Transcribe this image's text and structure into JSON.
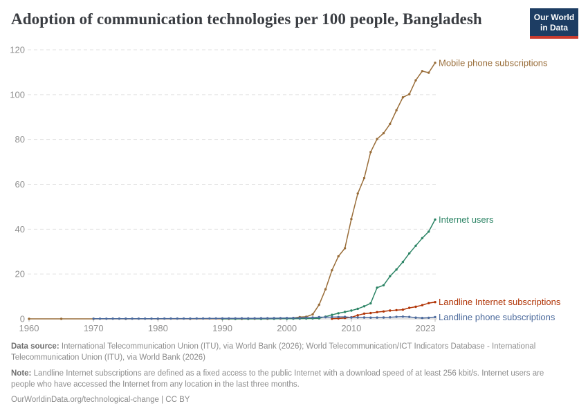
{
  "header": {
    "logo": {
      "line1": "Our World",
      "line2": "in Data",
      "bg_color": "#1d3d63",
      "bar_color": "#c93b2e"
    }
  },
  "footer": {
    "source_label": "Data source:",
    "source_text": "International Telecommunication Union (ITU), via World Bank (2026); World Telecommunication/ICT Indicators Database - International Telecommunication Union (ITU), via World Bank (2026)",
    "note_label": "Note:",
    "note_text": "Landline Internet subscriptions are defined as a fixed access to the public Internet with a download speed of at least 256 kbit/s. Internet users are people who have accessed the Internet from any location in the last three months.",
    "link_text": "OurWorldinData.org/technological-change | CC BY"
  },
  "chart_data": {
    "type": "line",
    "title": "Adoption of communication technologies per 100 people, Bangladesh",
    "xlabel": "",
    "ylabel": "",
    "xlim": [
      1960,
      2023
    ],
    "ylim": [
      0,
      120
    ],
    "x_ticks": [
      1960,
      1970,
      1980,
      1990,
      2000,
      2010,
      2023
    ],
    "y_ticks": [
      0,
      20,
      40,
      60,
      80,
      100,
      120
    ],
    "grid": "horizontal-dashed",
    "legend_position": "end-of-line-labels",
    "axis_text_color": "#8f8f8f",
    "gridline_color": "#e1e1e1",
    "zeroline_color": "#c6c6c6",
    "series": [
      {
        "name": "Mobile phone subscriptions",
        "color": "#996d39",
        "points": [
          [
            1960,
            0
          ],
          [
            1965,
            0
          ],
          [
            1970,
            0
          ],
          [
            1975,
            0
          ],
          [
            1980,
            0
          ],
          [
            1985,
            0
          ],
          [
            1990,
            0
          ],
          [
            1991,
            0
          ],
          [
            1992,
            0
          ],
          [
            1993,
            0.01
          ],
          [
            1994,
            0.01
          ],
          [
            1995,
            0.02
          ],
          [
            1996,
            0.02
          ],
          [
            1997,
            0.03
          ],
          [
            1998,
            0.07
          ],
          [
            1999,
            0.12
          ],
          [
            2000,
            0.21
          ],
          [
            2001,
            0.39
          ],
          [
            2002,
            0.79
          ],
          [
            2003,
            0.97
          ],
          [
            2004,
            1.96
          ],
          [
            2005,
            6.28
          ],
          [
            2006,
            13.2
          ],
          [
            2007,
            21.7
          ],
          [
            2008,
            27.9
          ],
          [
            2009,
            31.5
          ],
          [
            2010,
            44.5
          ],
          [
            2011,
            55.9
          ],
          [
            2012,
            62.8
          ],
          [
            2013,
            74.4
          ],
          [
            2014,
            80.2
          ],
          [
            2015,
            82.8
          ],
          [
            2016,
            86.9
          ],
          [
            2017,
            93.0
          ],
          [
            2018,
            98.8
          ],
          [
            2019,
            100.2
          ],
          [
            2020,
            106.4
          ],
          [
            2021,
            110.5
          ],
          [
            2022,
            109.8
          ],
          [
            2023,
            114.2
          ]
        ]
      },
      {
        "name": "Internet users",
        "color": "#2c8465",
        "points": [
          [
            1990,
            0
          ],
          [
            1992,
            0
          ],
          [
            1994,
            0
          ],
          [
            1996,
            0.01
          ],
          [
            1998,
            0.03
          ],
          [
            2000,
            0.07
          ],
          [
            2001,
            0.1
          ],
          [
            2002,
            0.13
          ],
          [
            2003,
            0.16
          ],
          [
            2004,
            0.2
          ],
          [
            2005,
            0.24
          ],
          [
            2006,
            1.0
          ],
          [
            2007,
            1.8
          ],
          [
            2008,
            2.5
          ],
          [
            2009,
            3.1
          ],
          [
            2010,
            3.7
          ],
          [
            2011,
            4.5
          ],
          [
            2012,
            5.6
          ],
          [
            2013,
            6.9
          ],
          [
            2014,
            13.9
          ],
          [
            2015,
            15.0
          ],
          [
            2016,
            19.0
          ],
          [
            2017,
            22.0
          ],
          [
            2018,
            25.4
          ],
          [
            2019,
            29.2
          ],
          [
            2020,
            32.6
          ],
          [
            2021,
            36.0
          ],
          [
            2022,
            38.9
          ],
          [
            2023,
            44.3
          ]
        ]
      },
      {
        "name": "Landline Internet subscriptions",
        "color": "#b13507",
        "points": [
          [
            2007,
            0.03
          ],
          [
            2008,
            0.2
          ],
          [
            2009,
            0.4
          ],
          [
            2010,
            0.7
          ],
          [
            2011,
            1.6
          ],
          [
            2012,
            2.3
          ],
          [
            2013,
            2.6
          ],
          [
            2014,
            3.0
          ],
          [
            2015,
            3.3
          ],
          [
            2016,
            3.7
          ],
          [
            2017,
            3.9
          ],
          [
            2018,
            4.1
          ],
          [
            2019,
            4.9
          ],
          [
            2020,
            5.4
          ],
          [
            2021,
            6.1
          ],
          [
            2022,
            7.0
          ],
          [
            2023,
            7.5
          ]
        ]
      },
      {
        "name": "Landline phone subscriptions",
        "color": "#4c6a9c",
        "points": [
          [
            1970,
            0.07
          ],
          [
            1971,
            0.07
          ],
          [
            1972,
            0.07
          ],
          [
            1973,
            0.08
          ],
          [
            1974,
            0.08
          ],
          [
            1975,
            0.08
          ],
          [
            1976,
            0.09
          ],
          [
            1977,
            0.09
          ],
          [
            1978,
            0.09
          ],
          [
            1979,
            0.1
          ],
          [
            1980,
            0.1
          ],
          [
            1981,
            0.11
          ],
          [
            1982,
            0.11
          ],
          [
            1983,
            0.12
          ],
          [
            1984,
            0.12
          ],
          [
            1985,
            0.13
          ],
          [
            1986,
            0.14
          ],
          [
            1987,
            0.15
          ],
          [
            1988,
            0.17
          ],
          [
            1989,
            0.19
          ],
          [
            1990,
            0.21
          ],
          [
            1991,
            0.22
          ],
          [
            1992,
            0.23
          ],
          [
            1993,
            0.24
          ],
          [
            1994,
            0.25
          ],
          [
            1995,
            0.26
          ],
          [
            1996,
            0.27
          ],
          [
            1997,
            0.28
          ],
          [
            1998,
            0.3
          ],
          [
            1999,
            0.34
          ],
          [
            2000,
            0.36
          ],
          [
            2001,
            0.39
          ],
          [
            2002,
            0.43
          ],
          [
            2003,
            0.55
          ],
          [
            2004,
            0.58
          ],
          [
            2005,
            0.78
          ],
          [
            2006,
            0.74
          ],
          [
            2007,
            0.76
          ],
          [
            2008,
            0.84
          ],
          [
            2009,
            0.89
          ],
          [
            2010,
            0.61
          ],
          [
            2011,
            0.64
          ],
          [
            2012,
            0.62
          ],
          [
            2013,
            0.55
          ],
          [
            2014,
            0.58
          ],
          [
            2015,
            0.62
          ],
          [
            2016,
            0.7
          ],
          [
            2017,
            0.9
          ],
          [
            2018,
            1.0
          ],
          [
            2019,
            0.85
          ],
          [
            2020,
            0.55
          ],
          [
            2021,
            0.4
          ],
          [
            2022,
            0.5
          ],
          [
            2023,
            0.8
          ]
        ]
      }
    ]
  }
}
